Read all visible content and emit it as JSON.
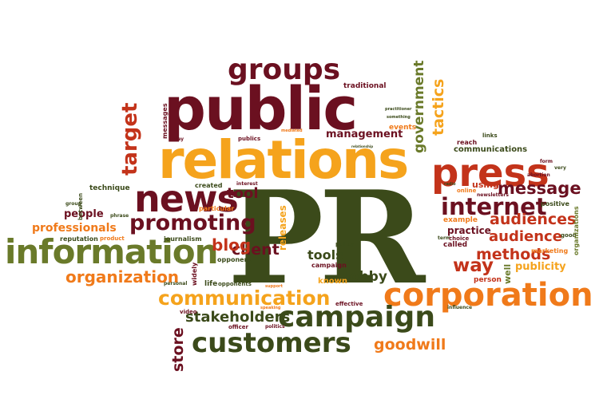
{
  "colors": {
    "dark_olive": "#3b4a1a",
    "maroon": "#6b1020",
    "red": "#c3331a",
    "orange": "#f07a1a",
    "amber": "#f5a31c",
    "olive": "#6a7a2a"
  },
  "words": {
    "pr": "PR",
    "public": "public",
    "relations": "relations",
    "groups": "groups",
    "news": "news",
    "press": "press",
    "information": "information",
    "corporation": "corporation",
    "campaign": "campaign",
    "customers": "customers",
    "communication": "communication",
    "promoting": "promoting",
    "internet": "internet",
    "message": "message",
    "audiences": "audiences",
    "audience": "audience",
    "methods": "methods",
    "way": "way",
    "publicity": "publicity",
    "organization": "organization",
    "stakeholders": "stakeholders",
    "goodwill": "goodwill",
    "client": "client",
    "blog": "blog",
    "tool": "tool",
    "tools": "tools",
    "lobby": "lobby",
    "people": "people",
    "professionals": "professionals",
    "practice": "practice",
    "management": "management",
    "traditional": "traditional",
    "communications": "communications",
    "government": "government",
    "tactics": "tactics",
    "target": "target",
    "store": "store",
    "releases": "releases",
    "known": "known",
    "using": "using",
    "reach": "reach",
    "events": "events",
    "technique": "technique",
    "created": "created",
    "particular": "particular",
    "reputation": "reputation",
    "journalism": "journalism",
    "opponent": "opponent",
    "campaign_small": "campaign",
    "policy": "policy",
    "widely": "widely",
    "life": "life",
    "opponents": "opponents",
    "effective": "effective",
    "person": "person",
    "well": "well",
    "called": "called",
    "example": "example",
    "marketing": "marketing",
    "positive": "positive",
    "organizations": "organizations",
    "influence": "influence",
    "video": "video",
    "officer": "officer",
    "politics": "politics",
    "publics": "publics",
    "interest": "interest",
    "messages": "messages",
    "day": "day",
    "between": "between",
    "group": "group",
    "product": "product",
    "online": "online",
    "links": "links",
    "term": "term",
    "choice": "choice",
    "good": "good",
    "form": "form",
    "personal": "personal",
    "phrase": "phrase",
    "practitioner": "practitioner",
    "speaking": "speaking",
    "support": "support",
    "radio": "radio",
    "newsletters": "newsletters",
    "abortion": "abortion",
    "mediated": "mediated",
    "something": "something",
    "relationship": "relationship",
    "very": "very"
  }
}
